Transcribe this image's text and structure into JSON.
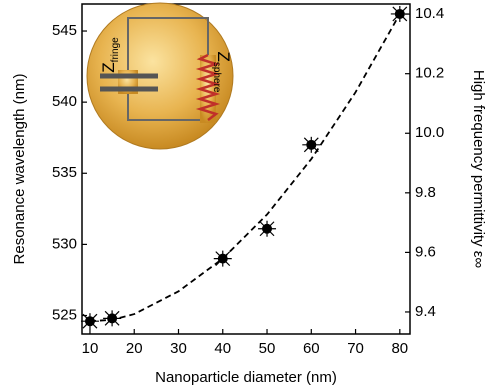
{
  "chart_data": {
    "type": "scatter",
    "xlabel": "Nanoparticle diameter (nm)",
    "ylabel": "Resonance wavelength (nm)",
    "y2label": "High frequency permittivity ε∞",
    "xlim": [
      8.2,
      82.3
    ],
    "xticks": [
      10,
      20,
      30,
      40,
      50,
      60,
      70,
      80
    ],
    "ylim": [
      523.7,
      546.9
    ],
    "yticks": [
      525,
      530,
      535,
      540,
      545
    ],
    "y2lim": [
      9.326,
      10.434
    ],
    "y2ticks": [
      9.4,
      9.6,
      9.8,
      {
        "value": 10,
        "label": "10.0"
      },
      10.2,
      10.4
    ],
    "series": [
      {
        "type": "scatter",
        "color": "#000000",
        "x": [
          10,
          15,
          40,
          50,
          60,
          80
        ],
        "values": [
          524.6,
          524.8,
          529.0,
          531.1,
          537.0,
          546.2
        ]
      },
      {
        "type": "line",
        "dashed": true,
        "color": "#000000",
        "x": [
          10,
          15,
          20,
          30,
          40,
          50,
          60,
          70,
          80
        ],
        "values": [
          524.6,
          524.7,
          525.1,
          526.7,
          529.0,
          532.1,
          536.0,
          540.7,
          546.2
        ]
      }
    ],
    "inset": {
      "capacitor_label": "Z",
      "capacitor_subscript": "fringe",
      "resistor_label": "Z",
      "resistor_subscript": "sphere"
    }
  }
}
